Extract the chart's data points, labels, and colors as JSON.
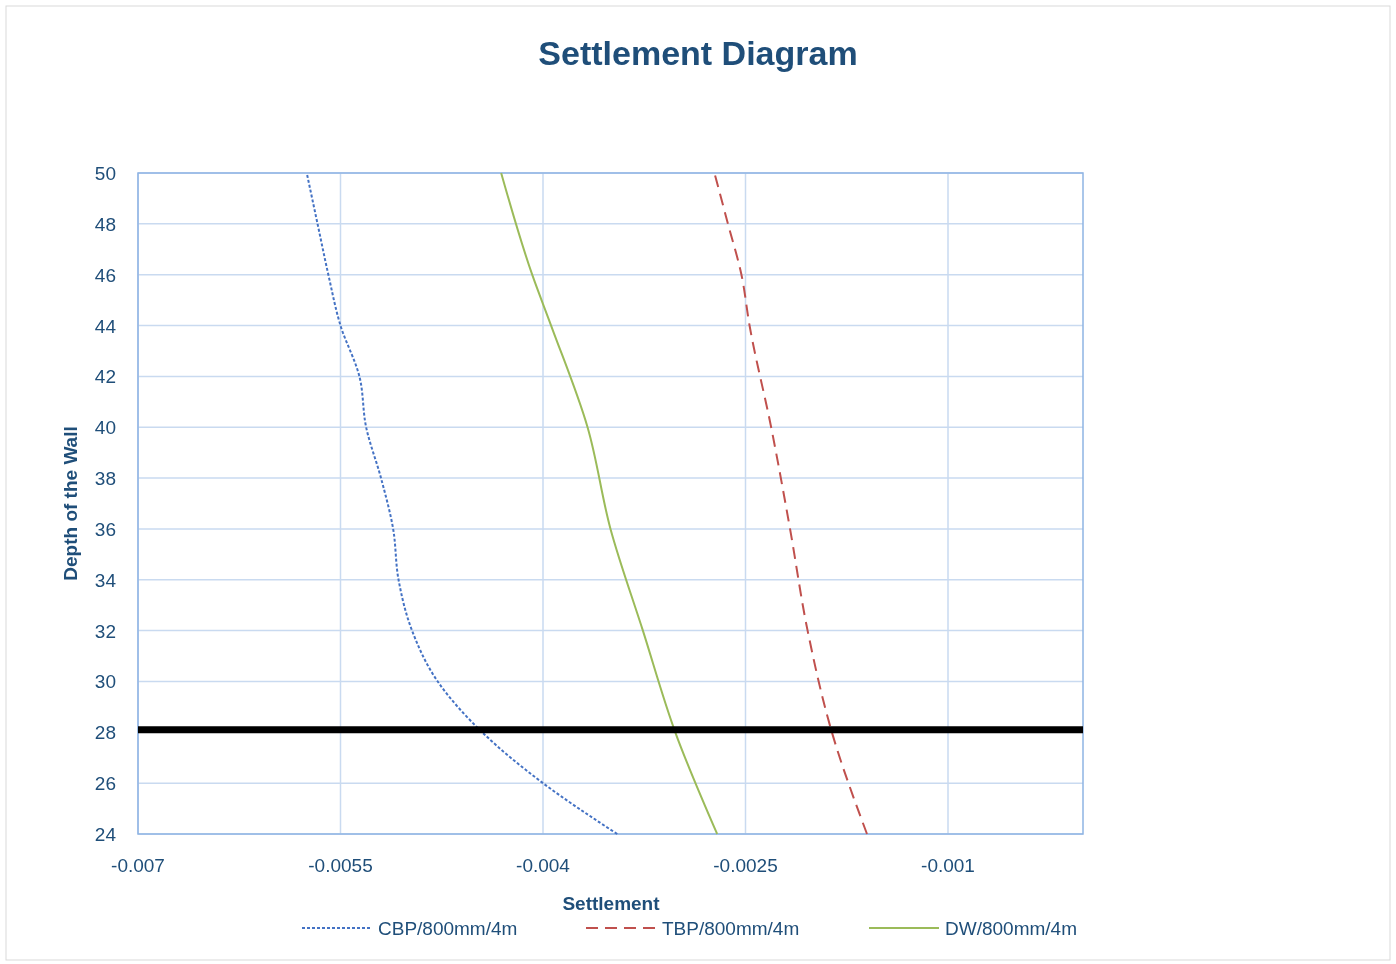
{
  "chart_data": {
    "type": "line",
    "title": "Settlement Diagram",
    "xlabel": "Settlement",
    "ylabel": "Depth of the Wall",
    "xlim": [
      -0.007,
      0
    ],
    "xticks": [
      -0.007,
      -0.0055,
      -0.004,
      -0.0025,
      -0.001
    ],
    "ylim": [
      24,
      50
    ],
    "yticks": [
      24,
      26,
      28,
      30,
      32,
      34,
      36,
      38,
      40,
      42,
      44,
      46,
      48,
      50
    ],
    "grid": true,
    "legend": "bottom",
    "marker": "none",
    "series": [
      {
        "name": "CBP/800mm/4m",
        "color": "#4472c4",
        "line_style": "dotted",
        "x": [
          -0.00345,
          -0.004,
          -0.00445,
          -0.00478,
          -0.00497,
          -0.00507,
          -0.00511,
          -0.0052,
          -0.00531,
          -0.00536,
          -0.0055,
          -0.00559,
          -0.00567,
          -0.00575
        ],
        "values": [
          24,
          26,
          28,
          30,
          32,
          34,
          36,
          38,
          40,
          42,
          44,
          46,
          48,
          50
        ]
      },
      {
        "name": "TBP/800mm/4m",
        "color": "#c0504d",
        "line_style": "dashed",
        "x": [
          -0.0016,
          -0.00186,
          -0.00204,
          -0.00217,
          -0.00231,
          -0.00247,
          -0.00253,
          -0.00263,
          -0.00273
        ],
        "values": [
          24,
          28,
          32,
          36,
          40,
          44,
          46,
          48,
          50
        ]
      },
      {
        "name": "DW/800mm/4m",
        "color": "#9bbb59",
        "line_style": "solid",
        "x": [
          -0.00271,
          -0.00302,
          -0.00326,
          -0.0035,
          -0.00367,
          -0.00394,
          -0.00408,
          -0.00431
        ],
        "values": [
          24,
          28,
          32,
          36,
          40,
          44,
          46,
          50
        ]
      }
    ],
    "ref_lines": [
      {
        "axis": "y",
        "value": 28.1,
        "color": "#000000"
      }
    ]
  }
}
